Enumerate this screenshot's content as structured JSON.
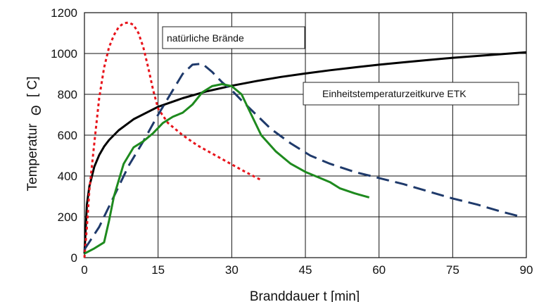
{
  "chart_data": {
    "type": "line",
    "xlabel": "Branddauer t [min]",
    "ylabel_main": "Temperatur",
    "ylabel_symbol": "Θ",
    "ylabel_unit": "[ C]",
    "xlim": [
      0,
      90
    ],
    "ylim": [
      0,
      1200
    ],
    "xticks": [
      0,
      15,
      30,
      45,
      60,
      75,
      90
    ],
    "yticks": [
      0,
      200,
      400,
      600,
      800,
      1000,
      1200
    ],
    "grid": true,
    "annotations": [
      {
        "id": "natural",
        "text": "natürliche Brände"
      },
      {
        "id": "etk",
        "text": "Einheitstemperaturzeitkurve  ETK"
      }
    ],
    "series": [
      {
        "name": "Einheitstemperaturzeitkurve  ETK",
        "color": "#000000",
        "style": "solid",
        "points": [
          [
            0,
            20
          ],
          [
            0.5,
            260
          ],
          [
            1,
            349
          ],
          [
            2,
            445
          ],
          [
            3,
            502
          ],
          [
            4,
            544
          ],
          [
            5,
            576
          ],
          [
            7,
            624
          ],
          [
            10,
            678
          ],
          [
            15,
            739
          ],
          [
            20,
            781
          ],
          [
            25,
            815
          ],
          [
            30,
            842
          ],
          [
            35,
            865
          ],
          [
            40,
            885
          ],
          [
            45,
            902
          ],
          [
            50,
            918
          ],
          [
            55,
            932
          ],
          [
            60,
            945
          ],
          [
            65,
            957
          ],
          [
            70,
            968
          ],
          [
            75,
            979
          ],
          [
            80,
            988
          ],
          [
            85,
            997
          ],
          [
            90,
            1006
          ]
        ]
      },
      {
        "color": "#e8141b",
        "style": "dotted",
        "points": [
          [
            0,
            0
          ],
          [
            0.5,
            150
          ],
          [
            1,
            330
          ],
          [
            2,
            560
          ],
          [
            3,
            780
          ],
          [
            4,
            930
          ],
          [
            5,
            1030
          ],
          [
            6,
            1090
          ],
          [
            7,
            1130
          ],
          [
            8,
            1148
          ],
          [
            9,
            1152
          ],
          [
            10,
            1140
          ],
          [
            11,
            1100
          ],
          [
            12,
            1030
          ],
          [
            13,
            930
          ],
          [
            14,
            820
          ],
          [
            15,
            730
          ],
          [
            17,
            660
          ],
          [
            20,
            600
          ],
          [
            23,
            550
          ],
          [
            26,
            510
          ],
          [
            29,
            470
          ],
          [
            32,
            430
          ],
          [
            34,
            405
          ],
          [
            36,
            380
          ]
        ]
      },
      {
        "color": "#1f3a6b",
        "style": "dashed",
        "points": [
          [
            0,
            40
          ],
          [
            3,
            150
          ],
          [
            6,
            300
          ],
          [
            9,
            450
          ],
          [
            12,
            570
          ],
          [
            15,
            700
          ],
          [
            18,
            820
          ],
          [
            20,
            900
          ],
          [
            22,
            945
          ],
          [
            24,
            950
          ],
          [
            26,
            910
          ],
          [
            28,
            860
          ],
          [
            30,
            820
          ],
          [
            32,
            770
          ],
          [
            35,
            700
          ],
          [
            38,
            630
          ],
          [
            42,
            560
          ],
          [
            46,
            500
          ],
          [
            50,
            460
          ],
          [
            55,
            420
          ],
          [
            60,
            390
          ],
          [
            65,
            360
          ],
          [
            70,
            325
          ],
          [
            75,
            290
          ],
          [
            80,
            260
          ],
          [
            85,
            225
          ],
          [
            89,
            200
          ]
        ]
      },
      {
        "color": "#1e8a1e",
        "style": "solid",
        "points": [
          [
            0,
            20
          ],
          [
            2,
            45
          ],
          [
            4,
            75
          ],
          [
            5,
            180
          ],
          [
            6,
            300
          ],
          [
            8,
            460
          ],
          [
            10,
            540
          ],
          [
            12,
            570
          ],
          [
            14,
            610
          ],
          [
            16,
            660
          ],
          [
            18,
            690
          ],
          [
            20,
            710
          ],
          [
            22,
            750
          ],
          [
            24,
            810
          ],
          [
            26,
            840
          ],
          [
            28,
            850
          ],
          [
            30,
            840
          ],
          [
            32,
            800
          ],
          [
            34,
            700
          ],
          [
            36,
            600
          ],
          [
            39,
            520
          ],
          [
            42,
            460
          ],
          [
            45,
            420
          ],
          [
            48,
            390
          ],
          [
            50,
            370
          ],
          [
            52,
            340
          ],
          [
            55,
            315
          ],
          [
            58,
            295
          ]
        ]
      }
    ]
  }
}
